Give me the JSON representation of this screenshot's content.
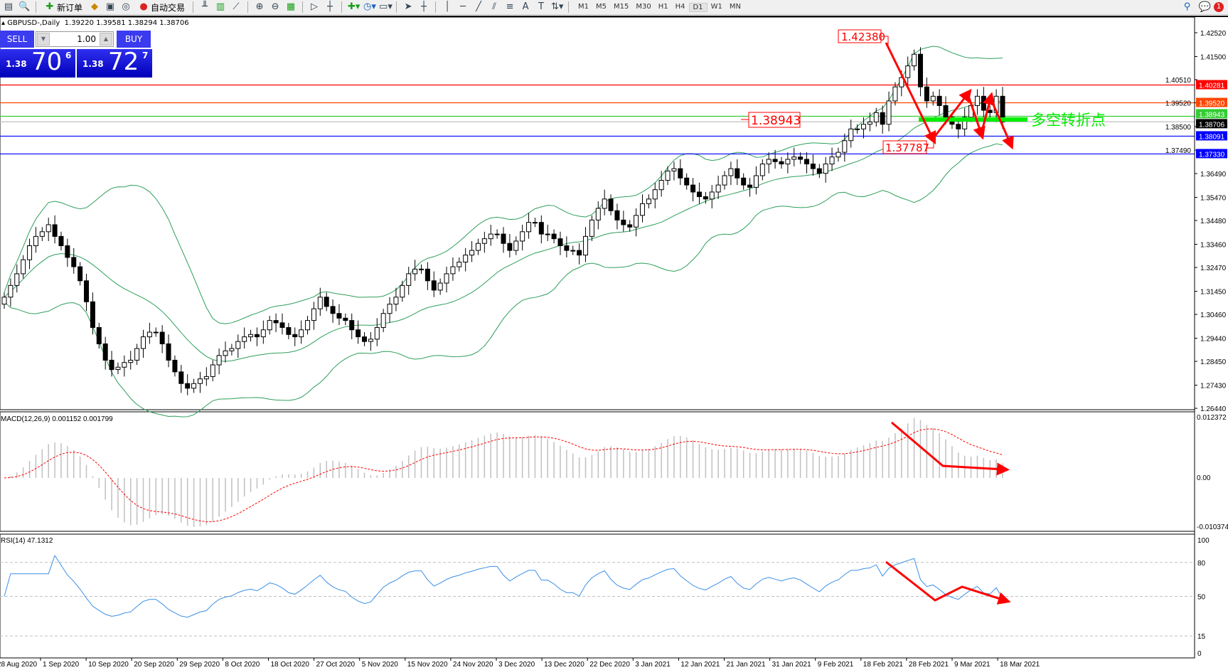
{
  "toolbar": {
    "new_order": "新订单",
    "auto_trading": "自动交易",
    "timeframes": [
      "M1",
      "M5",
      "M15",
      "M30",
      "H1",
      "H4",
      "D1",
      "W1",
      "MN"
    ],
    "active_timeframe": "D1",
    "notifications": "1"
  },
  "chart_header": {
    "symbol": "GBPUSD-,Daily",
    "ohlc": "1.39220 1.39581 1.38294 1.38706"
  },
  "one_click": {
    "sell_label": "SELL",
    "buy_label": "BUY",
    "lot": "1.00",
    "sell_big": "1.38",
    "sell_pips": "70",
    "sell_frac": "6",
    "buy_big": "1.38",
    "buy_pips": "72",
    "buy_frac": "7"
  },
  "chart_data": {
    "type": "candlestick",
    "symbol": "GBPUSD-",
    "timeframe": "Daily",
    "closes": [
      1.312,
      1.317,
      1.322,
      1.328,
      1.334,
      1.338,
      1.34,
      1.343,
      1.338,
      1.334,
      1.329,
      1.325,
      1.319,
      1.31,
      1.299,
      1.292,
      1.285,
      1.281,
      1.282,
      1.284,
      1.285,
      1.29,
      1.295,
      1.297,
      1.297,
      1.292,
      1.285,
      1.28,
      1.275,
      1.273,
      1.275,
      1.277,
      1.278,
      1.283,
      1.287,
      1.289,
      1.29,
      1.293,
      1.295,
      1.296,
      1.295,
      1.298,
      1.302,
      1.301,
      1.299,
      1.296,
      1.295,
      1.298,
      1.302,
      1.307,
      1.312,
      1.308,
      1.305,
      1.303,
      1.302,
      1.298,
      1.295,
      1.293,
      1.294,
      1.299,
      1.305,
      1.309,
      1.312,
      1.317,
      1.322,
      1.324,
      1.324,
      1.319,
      1.315,
      1.318,
      1.322,
      1.325,
      1.327,
      1.33,
      1.332,
      1.335,
      1.337,
      1.339,
      1.339,
      1.335,
      1.332,
      1.336,
      1.34,
      1.344,
      1.344,
      1.339,
      1.339,
      1.337,
      1.334,
      1.332,
      1.332,
      1.33,
      1.338,
      1.345,
      1.35,
      1.354,
      1.349,
      1.345,
      1.343,
      1.342,
      1.347,
      1.352,
      1.354,
      1.358,
      1.362,
      1.366,
      1.367,
      1.363,
      1.36,
      1.357,
      1.355,
      1.354,
      1.357,
      1.36,
      1.364,
      1.367,
      1.363,
      1.36,
      1.359,
      1.364,
      1.369,
      1.371,
      1.37,
      1.369,
      1.371,
      1.372,
      1.371,
      1.369,
      1.367,
      1.365,
      1.369,
      1.372,
      1.374,
      1.379,
      1.384,
      1.384,
      1.386,
      1.387,
      1.391,
      1.386,
      1.396,
      1.402,
      1.406,
      1.411,
      1.416,
      1.402,
      1.396,
      1.398,
      1.394,
      1.389,
      1.386,
      1.384,
      1.389,
      1.394,
      1.398,
      1.392,
      1.391,
      1.398,
      1.38706
    ],
    "price_ticks": [
      "1.42520",
      "1.41500",
      "1.40510",
      "1.39520",
      "1.38500",
      "1.37490",
      "1.36490",
      "1.35470",
      "1.34480",
      "1.33460",
      "1.32470",
      "1.31450",
      "1.30460",
      "1.29440",
      "1.28450",
      "1.27430",
      "1.26440"
    ],
    "hlines": [
      {
        "price": "1.40281",
        "color": "#ff0000"
      },
      {
        "price": "1.39520",
        "color": "#ff4500"
      },
      {
        "price": "1.38943",
        "color": "#32cd32"
      },
      {
        "price": "1.38706",
        "color": "#000000",
        "line": "#c0c0c0"
      },
      {
        "price": "1.38091",
        "color": "#0000ff"
      },
      {
        "price": "1.37330",
        "color": "#0000ff"
      }
    ],
    "annotations": {
      "high": "1.42380",
      "pivot": "1.38943",
      "low": "1.37787",
      "pivot_text": "多空转折点"
    },
    "bands": "Bollinger(20,2)",
    "macd": {
      "label": "MACD(12,26,9) 0.001152 0.001799",
      "max": "0.012372",
      "zero": "0.00",
      "min": "-0.010374"
    },
    "rsi": {
      "label": "RSI(14) 47.1312",
      "levels": [
        "100",
        "80",
        "50",
        "15",
        "0"
      ]
    },
    "dates": [
      "28 Aug 2020",
      "1 Sep 2020",
      "10 Sep 2020",
      "20 Sep 2020",
      "29 Sep 2020",
      "8 Oct 2020",
      "18 Oct 2020",
      "27 Oct 2020",
      "5 Nov 2020",
      "15 Nov 2020",
      "24 Nov 2020",
      "3 Dec 2020",
      "13 Dec 2020",
      "22 Dec 2020",
      "3 Jan 2021",
      "12 Jan 2021",
      "21 Jan 2021",
      "31 Jan 2021",
      "9 Feb 2021",
      "18 Feb 2021",
      "28 Feb 2021",
      "9 Mar 2021",
      "18 Mar 2021"
    ],
    "colors": {
      "bands": "#2e9e5b",
      "macd_hist": "#c0c0c0",
      "macd_signal": "#ff0000",
      "rsi": "#3a8ee6",
      "arrows": "#ff0000",
      "pivot": "#00ee00"
    }
  }
}
